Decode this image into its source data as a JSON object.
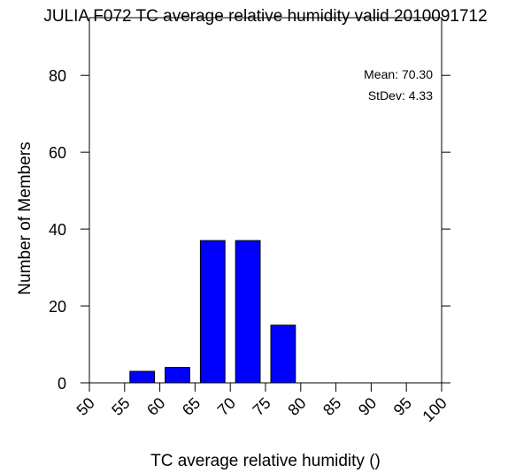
{
  "chart_data": {
    "type": "bar",
    "title": "JULIA F072 TC average relative humidity valid 2010091712",
    "xlabel": "TC average relative humidity ()",
    "ylabel": "Number of Members",
    "xlim": [
      50,
      100
    ],
    "ylim": [
      0,
      95
    ],
    "x_ticks": [
      50,
      55,
      60,
      65,
      70,
      75,
      80,
      85,
      90,
      95,
      100
    ],
    "y_ticks": [
      0,
      20,
      40,
      60,
      80
    ],
    "bins": [
      {
        "start": 55,
        "end": 60,
        "value": 3
      },
      {
        "start": 60,
        "end": 65,
        "value": 4
      },
      {
        "start": 65,
        "end": 70,
        "value": 37
      },
      {
        "start": 70,
        "end": 75,
        "value": 37
      },
      {
        "start": 75,
        "end": 80,
        "value": 15
      }
    ],
    "bar_color": "#0000ff",
    "grid": false,
    "stats": {
      "mean": "Mean: 70.30",
      "stdev": "StDev: 4.33"
    },
    "stats_placement": "top-right"
  }
}
